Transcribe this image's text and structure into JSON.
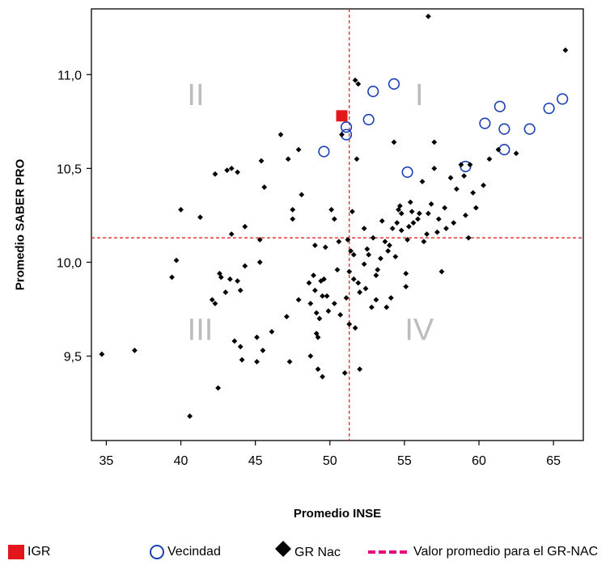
{
  "chart_data": {
    "type": "scatter",
    "title": "",
    "xlabel": "Promedio INSE",
    "ylabel": "Promedio SABER PRO",
    "xlim": [
      34,
      67
    ],
    "ylim": [
      9.05,
      11.35
    ],
    "xticks": [
      35,
      40,
      45,
      50,
      55,
      60,
      65
    ],
    "xtick_labels": [
      "35",
      "40",
      "45",
      "50",
      "55",
      "60",
      "65"
    ],
    "yticks": [
      9.5,
      10.0,
      10.5,
      11.0
    ],
    "ytick_labels": [
      "9,5",
      "10,0",
      "10,5",
      "11,0"
    ],
    "reference_lines": {
      "x_mean": 51.3,
      "y_mean": 10.13,
      "color": "#e3161c",
      "style": "dashed"
    },
    "quadrant_labels": [
      {
        "text": "II",
        "x": 41.0,
        "y": 10.88
      },
      {
        "text": "I",
        "x": 56.0,
        "y": 10.88
      },
      {
        "text": "III",
        "x": 41.3,
        "y": 9.63
      },
      {
        "text": "IV",
        "x": 56.0,
        "y": 9.63
      }
    ],
    "colors": {
      "igr": "#e3161c",
      "vecindad": "#1b3fb5",
      "gr_nac": "#000000",
      "legend_line": "#e6007e"
    },
    "legend_position": "bottom",
    "series": [
      {
        "name": "IGR",
        "marker": "square",
        "points": [
          [
            50.8,
            10.78
          ]
        ]
      },
      {
        "name": "Vecindad",
        "marker": "circle",
        "points": [
          [
            49.6,
            10.59
          ],
          [
            51.1,
            10.72
          ],
          [
            51.1,
            10.68
          ],
          [
            52.6,
            10.76
          ],
          [
            52.9,
            10.91
          ],
          [
            54.3,
            10.95
          ],
          [
            55.2,
            10.48
          ],
          [
            59.1,
            10.51
          ],
          [
            60.4,
            10.74
          ],
          [
            61.4,
            10.83
          ],
          [
            61.7,
            10.71
          ],
          [
            61.7,
            10.6
          ],
          [
            63.4,
            10.71
          ],
          [
            64.7,
            10.82
          ],
          [
            65.6,
            10.87
          ]
        ]
      },
      {
        "name": "GR Nac",
        "marker": "diamond",
        "points": [
          [
            34.7,
            9.51
          ],
          [
            36.9,
            9.53
          ],
          [
            39.4,
            9.92
          ],
          [
            39.7,
            10.01
          ],
          [
            40.0,
            10.28
          ],
          [
            40.6,
            9.18
          ],
          [
            41.3,
            10.24
          ],
          [
            42.1,
            9.8
          ],
          [
            42.3,
            9.78
          ],
          [
            42.3,
            10.47
          ],
          [
            42.5,
            9.33
          ],
          [
            42.6,
            9.94
          ],
          [
            42.7,
            9.92
          ],
          [
            43.0,
            9.84
          ],
          [
            43.1,
            10.49
          ],
          [
            43.4,
            10.5
          ],
          [
            43.4,
            10.15
          ],
          [
            43.3,
            9.91
          ],
          [
            43.6,
            9.58
          ],
          [
            43.8,
            10.48
          ],
          [
            43.8,
            9.9
          ],
          [
            44.0,
            9.85
          ],
          [
            44.0,
            9.55
          ],
          [
            44.1,
            9.48
          ],
          [
            44.3,
            9.98
          ],
          [
            44.3,
            10.19
          ],
          [
            45.1,
            9.6
          ],
          [
            45.1,
            9.47
          ],
          [
            45.3,
            10.12
          ],
          [
            45.3,
            10.0
          ],
          [
            45.4,
            10.54
          ],
          [
            45.5,
            9.53
          ],
          [
            45.6,
            10.4
          ],
          [
            46.1,
            9.63
          ],
          [
            46.7,
            10.68
          ],
          [
            47.1,
            9.71
          ],
          [
            47.2,
            10.55
          ],
          [
            47.3,
            9.47
          ],
          [
            47.5,
            10.23
          ],
          [
            47.5,
            10.28
          ],
          [
            47.9,
            10.6
          ],
          [
            47.9,
            9.8
          ],
          [
            48.1,
            10.36
          ],
          [
            48.6,
            9.89
          ],
          [
            48.7,
            9.78
          ],
          [
            48.7,
            9.5
          ],
          [
            48.9,
            9.93
          ],
          [
            49.0,
            10.09
          ],
          [
            49.0,
            9.85
          ],
          [
            49.1,
            9.73
          ],
          [
            49.1,
            9.62
          ],
          [
            49.2,
            9.6
          ],
          [
            49.2,
            9.43
          ],
          [
            49.3,
            9.7
          ],
          [
            49.4,
            9.9
          ],
          [
            49.5,
            9.82
          ],
          [
            49.5,
            9.39
          ],
          [
            49.6,
            9.91
          ],
          [
            49.7,
            10.08
          ],
          [
            49.8,
            9.82
          ],
          [
            49.9,
            9.74
          ],
          [
            50.1,
            10.28
          ],
          [
            50.3,
            9.78
          ],
          [
            50.3,
            10.23
          ],
          [
            50.5,
            9.96
          ],
          [
            50.6,
            10.11
          ],
          [
            50.7,
            9.72
          ],
          [
            50.8,
            10.68
          ],
          [
            51.0,
            9.41
          ],
          [
            51.1,
            9.81
          ],
          [
            51.2,
            10.12
          ],
          [
            51.3,
            9.67
          ],
          [
            51.3,
            9.95
          ],
          [
            51.4,
            10.06
          ],
          [
            51.5,
            10.27
          ],
          [
            51.6,
            9.91
          ],
          [
            51.6,
            10.04
          ],
          [
            51.7,
            9.65
          ],
          [
            51.8,
            10.55
          ],
          [
            51.9,
            9.89
          ],
          [
            51.7,
            10.97
          ],
          [
            51.9,
            10.95
          ],
          [
            52.0,
            9.43
          ],
          [
            52.0,
            9.84
          ],
          [
            52.3,
            9.99
          ],
          [
            52.3,
            10.18
          ],
          [
            52.4,
            9.86
          ],
          [
            52.5,
            10.07
          ],
          [
            52.6,
            10.04
          ],
          [
            52.8,
            9.76
          ],
          [
            52.9,
            10.13
          ],
          [
            53.1,
            9.8
          ],
          [
            53.1,
            9.93
          ],
          [
            53.2,
            9.96
          ],
          [
            53.4,
            10.02
          ],
          [
            53.5,
            10.22
          ],
          [
            53.7,
            10.11
          ],
          [
            53.8,
            9.76
          ],
          [
            53.9,
            10.06
          ],
          [
            54.0,
            10.09
          ],
          [
            54.1,
            9.81
          ],
          [
            54.2,
            10.18
          ],
          [
            54.3,
            10.64
          ],
          [
            54.4,
            10.03
          ],
          [
            54.5,
            10.21
          ],
          [
            54.6,
            10.28
          ],
          [
            54.7,
            10.3
          ],
          [
            54.8,
            10.17
          ],
          [
            54.8,
            10.26
          ],
          [
            55.1,
            9.87
          ],
          [
            55.1,
            9.94
          ],
          [
            55.2,
            10.12
          ],
          [
            55.3,
            10.19
          ],
          [
            55.4,
            10.32
          ],
          [
            55.5,
            10.27
          ],
          [
            55.6,
            10.21
          ],
          [
            55.9,
            10.23
          ],
          [
            56.0,
            10.26
          ],
          [
            56.2,
            10.43
          ],
          [
            56.3,
            10.11
          ],
          [
            56.5,
            10.15
          ],
          [
            56.6,
            10.26
          ],
          [
            56.8,
            10.31
          ],
          [
            56.6,
            11.31
          ],
          [
            57.0,
            10.64
          ],
          [
            57.0,
            10.5
          ],
          [
            57.2,
            10.16
          ],
          [
            57.3,
            10.23
          ],
          [
            57.5,
            9.95
          ],
          [
            57.7,
            10.29
          ],
          [
            57.8,
            10.18
          ],
          [
            58.1,
            10.45
          ],
          [
            58.3,
            10.21
          ],
          [
            58.5,
            10.39
          ],
          [
            58.8,
            10.52
          ],
          [
            59.0,
            10.46
          ],
          [
            59.1,
            10.25
          ],
          [
            59.3,
            10.13
          ],
          [
            59.4,
            10.52
          ],
          [
            59.6,
            10.37
          ],
          [
            59.8,
            10.29
          ],
          [
            60.3,
            10.41
          ],
          [
            60.7,
            10.55
          ],
          [
            61.3,
            10.6
          ],
          [
            62.5,
            10.58
          ],
          [
            65.8,
            11.13
          ]
        ]
      }
    ]
  },
  "legend": {
    "igr": "IGR",
    "vecindad": "Vecindad",
    "gr_nac": "GR Nac",
    "mean_line": "Valor promedio para el GR-NAC"
  }
}
